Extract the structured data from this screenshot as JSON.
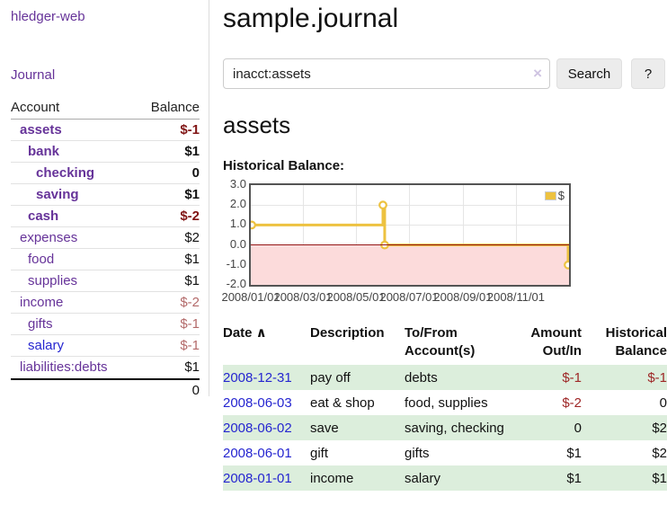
{
  "colors": {
    "link_purple": "#663399",
    "link_blue": "#2525d0",
    "negative_strong": "#801515",
    "negative_muted": "#b36a6a",
    "negative_table": "#9e2626",
    "row_green": "#dceedc",
    "chart_series_yellow": "#edc240",
    "chart_negative_region": "#fcdbdb",
    "chart_zero_line": "#941616",
    "chart_border": "#545454"
  },
  "sidebar": {
    "brand": "hledger-web",
    "nav": {
      "journal_label": "Journal"
    },
    "accounts_table": {
      "headers": {
        "account": "Account",
        "balance": "Balance"
      },
      "rows": [
        {
          "name": "assets",
          "balance": "$-1",
          "indent": 0,
          "bold": true,
          "balance_class": "neg-strong"
        },
        {
          "name": "bank",
          "balance": "$1",
          "indent": 1,
          "bold": true
        },
        {
          "name": "checking",
          "balance": "0",
          "indent": 2,
          "bold": true
        },
        {
          "name": "saving",
          "balance": "$1",
          "indent": 2,
          "bold": true
        },
        {
          "name": "cash",
          "balance": "$-2",
          "indent": 1,
          "bold": true,
          "balance_class": "neg-strong"
        },
        {
          "name": "expenses",
          "balance": "$2",
          "indent": 0
        },
        {
          "name": "food",
          "balance": "$1",
          "indent": 1
        },
        {
          "name": "supplies",
          "balance": "$1",
          "indent": 1
        },
        {
          "name": "income",
          "balance": "$-2",
          "indent": 0,
          "balance_class": "neg-muted"
        },
        {
          "name": "gifts",
          "balance": "$-1",
          "indent": 1,
          "balance_class": "neg-muted"
        },
        {
          "name": "salary",
          "balance": "$-1",
          "indent": 1,
          "link": "blue",
          "balance_class": "neg-muted"
        },
        {
          "name": "liabilities:debts",
          "balance": "$1",
          "indent": 0
        }
      ],
      "total": "0"
    }
  },
  "main": {
    "title": "sample.journal",
    "search": {
      "value": "inacct:assets",
      "clear_icon": "×",
      "search_label": "Search",
      "help_label": "?"
    },
    "account_heading": "assets",
    "chart_label": "Historical Balance:",
    "chart_data": {
      "type": "line",
      "step": true,
      "title": "Historical Balance",
      "series": [
        {
          "name": "$",
          "color": "#edc240",
          "points": [
            [
              "2008-01-01",
              1
            ],
            [
              "2008-06-01",
              2
            ],
            [
              "2008-06-03",
              0
            ],
            [
              "2008-12-31",
              -1
            ]
          ]
        }
      ],
      "ylim": [
        -2,
        3
      ],
      "yticks": [
        "3.0",
        "2.0",
        "1.0",
        "0.0",
        "-1.0",
        "-2.0"
      ],
      "xticks": [
        "2008/01/01",
        "2008/03/01",
        "2008/05/01",
        "2008/07/01",
        "2008/09/01",
        "2008/11/01"
      ],
      "legend_position": "top-right",
      "grid": true
    },
    "register_table": {
      "headers": [
        {
          "key": "date",
          "lines": [
            "Date"
          ],
          "sort": "∧",
          "sortable": true
        },
        {
          "key": "description",
          "lines": [
            "Description"
          ]
        },
        {
          "key": "accounts",
          "lines": [
            "To/From",
            "Account(s)"
          ]
        },
        {
          "key": "amount",
          "lines": [
            "Amount",
            "Out/In"
          ],
          "align": "right"
        },
        {
          "key": "balance",
          "lines": [
            "Historical",
            "Balance"
          ],
          "align": "right"
        }
      ],
      "rows": [
        {
          "date": "2008-12-31",
          "description": "pay off",
          "accounts": "debts",
          "amount": "$-1",
          "balance": "$-1"
        },
        {
          "date": "2008-06-03",
          "description": "eat & shop",
          "accounts": "food, supplies",
          "amount": "$-2",
          "balance": "0"
        },
        {
          "date": "2008-06-02",
          "description": "save",
          "accounts": "saving, checking",
          "amount": "0",
          "balance": "$2"
        },
        {
          "date": "2008-06-01",
          "description": "gift",
          "accounts": "gifts",
          "amount": "$1",
          "balance": "$2"
        },
        {
          "date": "2008-01-01",
          "description": "income",
          "accounts": "salary",
          "amount": "$1",
          "balance": "$1"
        }
      ]
    }
  }
}
